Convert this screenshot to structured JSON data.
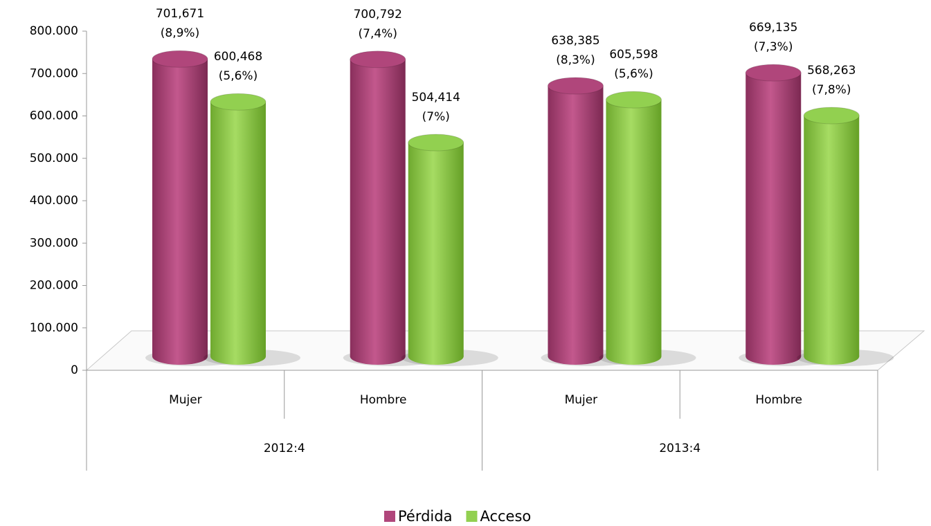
{
  "chart_data": {
    "type": "bar3d",
    "categories": [
      "Mujer",
      "Hombre",
      "Mujer",
      "Hombre"
    ],
    "groups": [
      "2012:4",
      "2013:4"
    ],
    "series": [
      {
        "name": "Pérdida",
        "color": "#b0467b",
        "values": [
          701671,
          700792,
          638385,
          669135
        ],
        "value_labels": [
          "701,671",
          "700,792",
          "638,385",
          "669,135"
        ],
        "share_labels": [
          "(8,9%)",
          "(7,4%)",
          "(8,3%)",
          "(7,3%)"
        ]
      },
      {
        "name": "Acceso",
        "color": "#92d050",
        "values": [
          600468,
          504414,
          605598,
          568263
        ],
        "value_labels": [
          "600,468",
          "504,414",
          "605,598",
          "568,263"
        ],
        "share_labels": [
          "(5,6%)",
          "(7%)",
          "(5,6%)",
          "(7,8%)"
        ]
      }
    ],
    "ylim": [
      0,
      800000
    ],
    "yticks": [
      0,
      {
        "value": 100000,
        "label": "100.000"
      },
      {
        "value": 200000,
        "label": "200.000"
      },
      {
        "value": 300000,
        "label": "300.000"
      },
      {
        "value": 400000,
        "label": "400.000"
      },
      {
        "value": 500000,
        "label": "500.000"
      },
      {
        "value": 600000,
        "label": "600.000"
      },
      {
        "value": 700000,
        "label": "700.000"
      },
      {
        "value": 800000,
        "label": "800.000"
      }
    ],
    "legend": "bottom"
  }
}
